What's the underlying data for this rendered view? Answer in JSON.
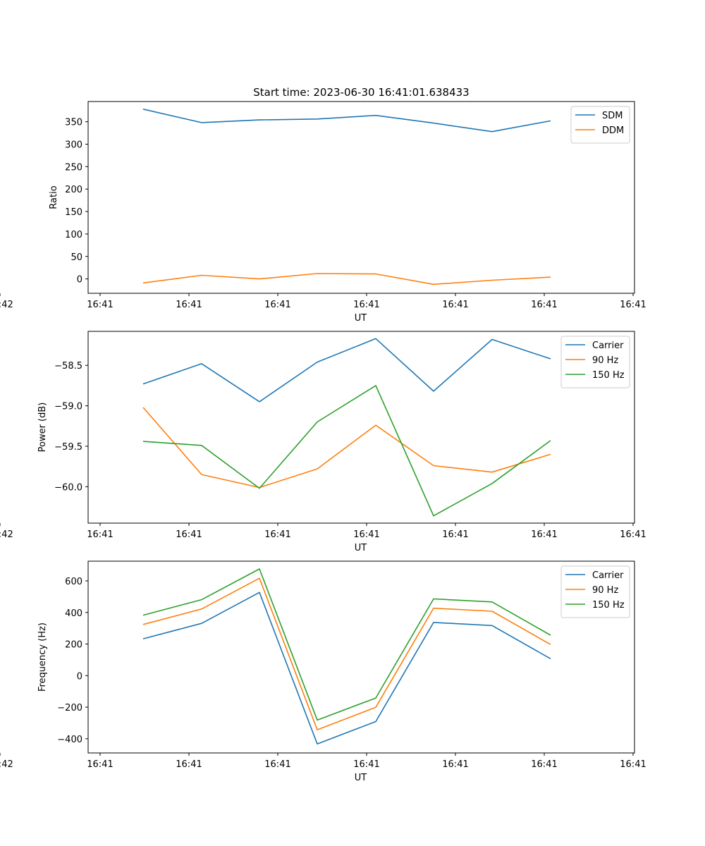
{
  "title": "Start time: 2023-06-30 16:41:01.638433",
  "chart_data": [
    {
      "type": "line",
      "xlabel": "UT",
      "ylabel": "Ratio",
      "x_tick_labels": [
        "16:41",
        "16:41",
        "16:41",
        "16:41",
        "16:41",
        "16:41",
        "16:41",
        "16:42"
      ],
      "y_ticks": [
        0,
        50,
        100,
        150,
        200,
        250,
        300,
        350
      ],
      "ylim": [
        -32,
        395
      ],
      "legend_position": "top-right",
      "series": [
        {
          "name": "SDM",
          "color": "#1f77b4",
          "values": [
            378,
            348,
            354,
            356,
            364,
            347,
            328,
            352
          ]
        },
        {
          "name": "DDM",
          "color": "#ff7f0e",
          "values": [
            -9,
            8,
            0,
            12,
            11,
            -12,
            -3,
            4
          ]
        }
      ]
    },
    {
      "type": "line",
      "xlabel": "UT",
      "ylabel": "Power (dB)",
      "x_tick_labels": [
        "16:41",
        "16:41",
        "16:41",
        "16:41",
        "16:41",
        "16:41",
        "16:41",
        "16:42"
      ],
      "y_ticks": [
        -60.0,
        -59.5,
        -59.0,
        -58.5
      ],
      "y_tick_labels": [
        "−60.0",
        "−59.5",
        "−59.0",
        "−58.5"
      ],
      "ylim": [
        -60.45,
        -58.08
      ],
      "legend_position": "top-right",
      "series": [
        {
          "name": "Carrier",
          "color": "#1f77b4",
          "values": [
            -58.73,
            -58.48,
            -58.95,
            -58.46,
            -58.17,
            -58.82,
            -58.18,
            -58.42
          ]
        },
        {
          "name": "90 Hz",
          "color": "#ff7f0e",
          "values": [
            -59.02,
            -59.85,
            -60.01,
            -59.78,
            -59.24,
            -59.74,
            -59.82,
            -59.6
          ]
        },
        {
          "name": "150 Hz",
          "color": "#2ca02c",
          "values": [
            -59.44,
            -59.49,
            -60.02,
            -59.2,
            -58.75,
            -60.36,
            -59.96,
            -59.43
          ]
        }
      ]
    },
    {
      "type": "line",
      "xlabel": "UT",
      "ylabel": "Frequency (Hz)",
      "x_tick_labels": [
        "16:41",
        "16:41",
        "16:41",
        "16:41",
        "16:41",
        "16:41",
        "16:41",
        "16:42"
      ],
      "y_ticks": [
        -400,
        -200,
        0,
        200,
        400,
        600
      ],
      "y_tick_labels": [
        "−400",
        "−200",
        "0",
        "200",
        "400",
        "600"
      ],
      "ylim": [
        -490,
        725
      ],
      "legend_position": "top-right",
      "series": [
        {
          "name": "Carrier",
          "color": "#1f77b4",
          "values": [
            233,
            331,
            527,
            -433,
            -291,
            337,
            317,
            107
          ]
        },
        {
          "name": "90 Hz",
          "color": "#ff7f0e",
          "values": [
            324,
            422,
            617,
            -343,
            -201,
            427,
            408,
            197
          ]
        },
        {
          "name": "150 Hz",
          "color": "#2ca02c",
          "values": [
            383,
            481,
            676,
            -282,
            -142,
            486,
            467,
            256
          ]
        }
      ]
    }
  ]
}
